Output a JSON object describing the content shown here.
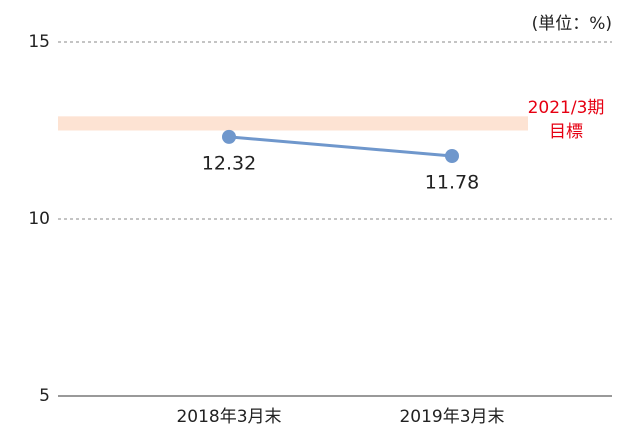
{
  "chart_data": {
    "type": "line",
    "unit_label": "(単位：%)",
    "categories": [
      "2018年3月末",
      "2019年3月末"
    ],
    "series": [
      {
        "name": null,
        "color": "#6f97cc",
        "values": [
          12.32,
          11.78
        ]
      }
    ],
    "ylim": [
      5,
      15
    ],
    "yticks": [
      5,
      10,
      15
    ],
    "grid": true,
    "target_band": {
      "range": [
        12.5,
        12.9
      ],
      "color": "#fde3d3"
    },
    "annotation": {
      "lines": [
        "2021/3期",
        "目標"
      ],
      "color": "#e60012"
    }
  }
}
